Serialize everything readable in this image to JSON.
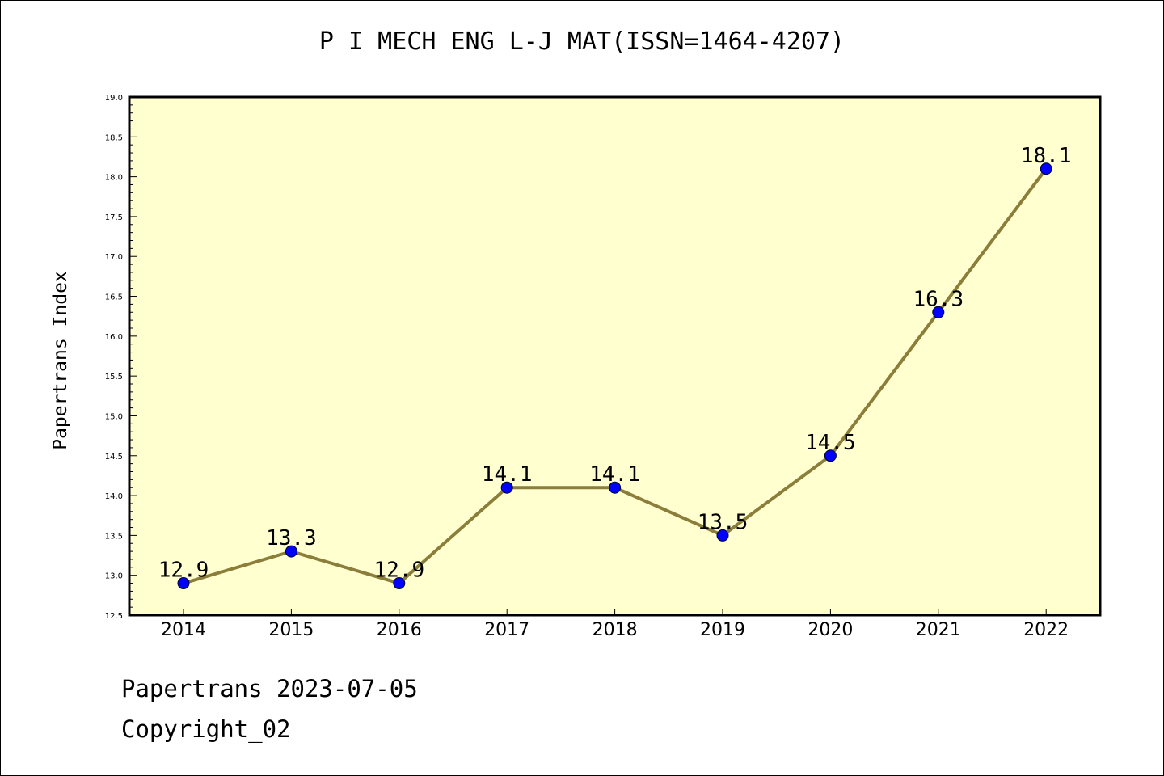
{
  "chart_data": {
    "type": "line",
    "title": "P I MECH ENG L-J MAT(ISSN=1464-4207)",
    "xlabel": "",
    "ylabel": "Papertrans Index",
    "categories": [
      "2014",
      "2015",
      "2016",
      "2017",
      "2018",
      "2019",
      "2020",
      "2021",
      "2022"
    ],
    "series": [
      {
        "values": [
          12.9,
          13.3,
          12.9,
          14.1,
          14.1,
          13.5,
          14.5,
          16.3,
          18.1
        ],
        "labels": [
          "12.9",
          "13.3",
          "12.9",
          "14.1",
          "14.1",
          "13.5",
          "14.5",
          "16.3",
          "18.1"
        ]
      }
    ],
    "ylim": [
      12.5,
      19.0
    ],
    "yticks": [
      "12.5",
      "13.0",
      "13.5",
      "14.0",
      "14.5",
      "15.0",
      "15.5",
      "16.0",
      "16.5",
      "17.0",
      "17.5",
      "18.0",
      "18.5",
      "19.0"
    ],
    "grid": false,
    "colors": {
      "plot_background": "#ffffd0",
      "line": "#8b7d3a",
      "marker": "#0000ff"
    }
  },
  "footer": {
    "line1": "Papertrans 2023-07-05",
    "line2": "Copyright_02"
  }
}
